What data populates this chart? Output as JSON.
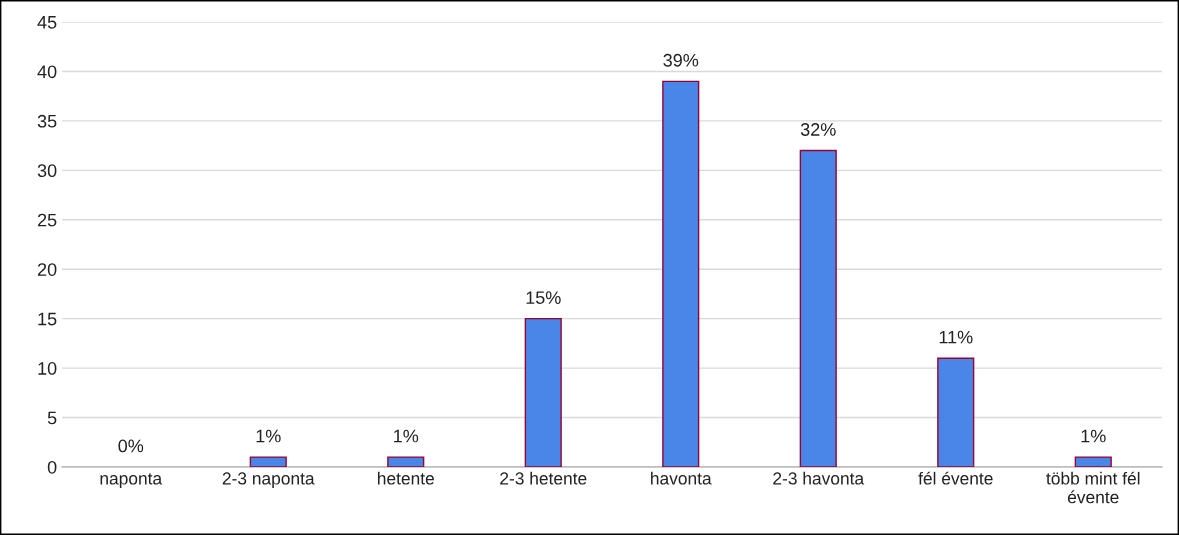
{
  "chart_data": {
    "type": "bar",
    "categories": [
      "naponta",
      "2-3 naponta",
      "hetente",
      "2-3 hetente",
      "havonta",
      "2-3 havonta",
      "fél évente",
      "több mint fél\névente"
    ],
    "values": [
      0,
      1,
      1,
      15,
      39,
      32,
      11,
      1
    ],
    "value_labels": [
      "0%",
      "1%",
      "1%",
      "15%",
      "39%",
      "32%",
      "11%",
      "1%"
    ],
    "color": "#4a86e8",
    "ylim": [
      0,
      45
    ],
    "yticks": [
      0,
      5,
      10,
      15,
      20,
      25,
      30,
      35,
      40,
      45
    ],
    "grid": "y",
    "legend": false
  }
}
